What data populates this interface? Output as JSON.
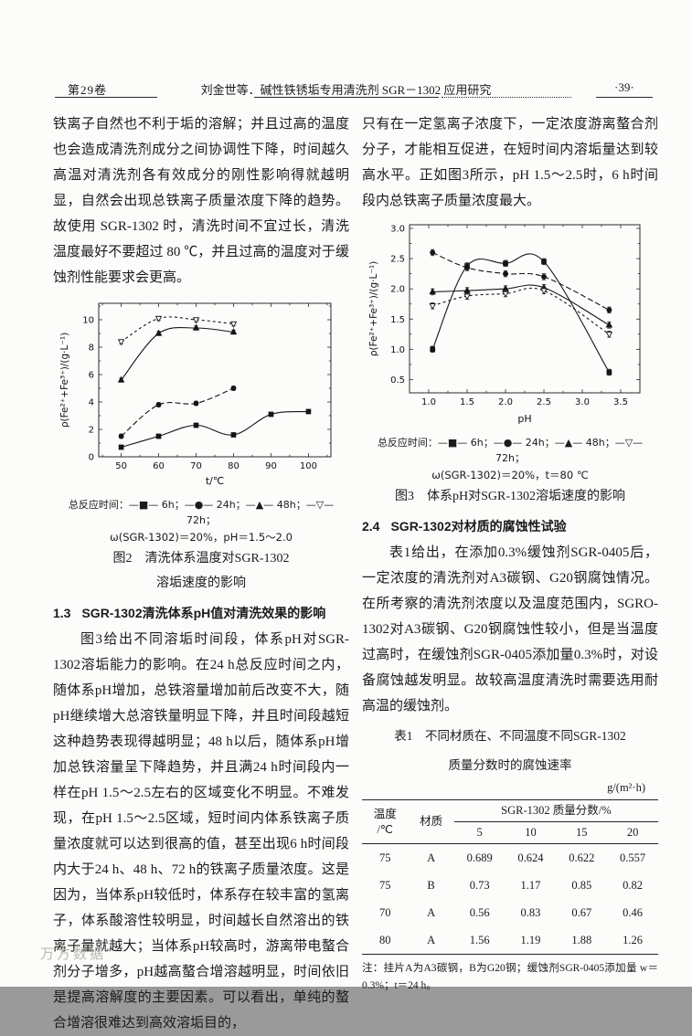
{
  "header": {
    "volume": "第29卷",
    "title": "刘金世等．碱性铁锈垢专用清洗剂 SGR－1302 应用研究",
    "page": "·39·"
  },
  "left_column": {
    "para1": "铁离子自然也不利于垢的溶解；并且过高的温度也会造成清洗剂成分之间协调性下降，时间越久高温对清洗剂各有效成分的刚性影响得就越明显，自然会出现总铁离子质量浓度下降的趋势。故使用 SGR-1302 时，清洗时间不宜过长，清洗温度最好不要超过 80 ℃，并且过高的温度对于缓蚀剂性能要求会更高。",
    "section_number": "1.3",
    "section_title": "SGR-1302清洗体系pH值对清洗效果的影响",
    "para2": "图3给出不同溶垢时间段，体系pH对SGR-1302溶垢能力的影响。在24 h总反应时间之内，随体系pH增加，总铁溶量增加前后改变不大，随pH继续增大总溶铁量明显下降，并且时间段越短这种趋势表现得越明显；48 h以后，随体系pH增加总铁溶量呈下降趋势，并且满24 h时间段内一样在pH 1.5～2.5左右的区域变化不明显。不难发现，在pH 1.5～2.5区域，短时间内体系铁离子质量浓度就可以达到很高的值，甚至出现6 h时间段内大于24 h、48 h、72 h的铁离子质量浓度。这是因为，当体系pH较低时，体系存在较丰富的氢离子，体系酸溶性较明显，时间越长自然溶出的铁离子量就越大；当体系pH较高时，游离带电螯合剂分子增多，pH越高螯合增溶越明显，时间依旧是提高溶解度的主要因素。可以看出，单纯的螯合增溶很难达到高效溶垢目的，"
  },
  "figure2": {
    "legend_line1": "总反应时间：—■— 6h；—●— 24h；—▲— 48h；—▽— 72h；",
    "legend_line2": "ω(SGR-1302)＝20%，pH＝1.5～2.0",
    "caption_line1": "图2　清洗体系温度对SGR-1302",
    "caption_line2": "溶垢速度的影响"
  },
  "figure3": {
    "legend_line1": "总反应时间：—■— 6h；—●— 24h；—▲— 48h；—▽— 72h；",
    "legend_line2": "ω(SGR-1302)＝20%，t＝80 ℃",
    "caption": "图3　体系pH对SGR-1302溶垢速度的影响"
  },
  "right_column": {
    "para1": "只有在一定氢离子浓度下，一定浓度游离螯合剂分子，才能相互促进，在短时间内溶垢量达到较高水平。正如图3所示，pH 1.5～2.5时，6 h时间段内总铁离子质量浓度最大。",
    "section_number": "2.4",
    "section_title": "SGR-1302对材质的腐蚀性试验",
    "para2": "表1给出，在添加0.3%缓蚀剂SGR-0405后，一定浓度的清洗剂对A3碳钢、G20钢腐蚀情况。在所考察的清洗剂浓度以及温度范围内，SGRO-1302对A3碳钢、G20钢腐蚀性较小，但是当温度过高时，在缓蚀剂SGR-0405添加量0.3%时，对设备腐蚀越发明显。故较高温度清洗时需要选用耐高温的缓蚀剂。"
  },
  "table1": {
    "title_line1": "表1　不同材质在、不同温度不同SGR-1302",
    "title_line2": "质量分数时的腐蚀速率",
    "unit": "g/(m²·h)",
    "header": {
      "col1_line1": "温度",
      "col1_line2": "/℃",
      "col2": "材质",
      "span": "SGR-1302 质量分数/%",
      "fractions": [
        "5",
        "10",
        "15",
        "20"
      ]
    },
    "rows": [
      [
        "75",
        "A",
        "0.689",
        "0.624",
        "0.622",
        "0.557"
      ],
      [
        "75",
        "B",
        "0.73",
        "1.17",
        "0.85",
        "0.82"
      ],
      [
        "70",
        "A",
        "0.56",
        "0.83",
        "0.67",
        "0.46"
      ],
      [
        "80",
        "A",
        "1.56",
        "1.19",
        "1.88",
        "1.26"
      ]
    ],
    "note": "注：挂片A为A3碳钢，B为G20钢；缓蚀剂SGR-0405添加量 w＝0.3%；t＝24 h。"
  },
  "footer": {
    "watermark": "万方数据"
  },
  "chart_data": [
    {
      "type": "line",
      "title": "图2 清洗体系温度对SGR-1302溶垢速度的影响",
      "xlabel": "t/℃",
      "ylabel": "ρ(Fe²⁺+Fe³⁺)/(g·L⁻¹)",
      "xlim": [
        44,
        106
      ],
      "ylim": [
        0,
        11.2
      ],
      "xticks": [
        50,
        60,
        70,
        80,
        90,
        100
      ],
      "xtick_labels": [
        "50",
        "60",
        "70",
        "80",
        "90",
        "100"
      ],
      "xminor": [
        45,
        55,
        65,
        75,
        85,
        95,
        105
      ],
      "yticks": [
        0,
        2,
        4,
        6,
        8,
        10
      ],
      "ytick_labels": [
        "0",
        "2",
        "4",
        "6",
        "8",
        "10"
      ],
      "yminor": [
        1,
        3,
        5,
        7,
        9,
        11
      ],
      "grid": false,
      "legend_position": "below",
      "legend_title": "总反应时间",
      "conditions": "ω(SGR-1302)=20%, pH=1.5~2.0",
      "size": [
        312,
        212
      ],
      "margins": [
        44,
        14,
        10,
        34
      ],
      "series": [
        {
          "name": "6h",
          "marker": "square-filled",
          "dash": "",
          "err": 0.15,
          "x": [
            50,
            60,
            70,
            80,
            90,
            100
          ],
          "y": [
            0.7,
            1.5,
            2.3,
            1.6,
            3.1,
            3.3
          ]
        },
        {
          "name": "24h",
          "marker": "circle-filled",
          "dash": "6,3",
          "err": 0.15,
          "x": [
            50,
            60,
            70,
            80
          ],
          "y": [
            1.5,
            3.8,
            3.9,
            5.0
          ]
        },
        {
          "name": "48h",
          "marker": "triangle-up-filled",
          "dash": "",
          "err": 0.15,
          "x": [
            50,
            60,
            70,
            80
          ],
          "y": [
            5.6,
            9.0,
            9.4,
            9.1
          ]
        },
        {
          "name": "72h",
          "marker": "triangle-down-open",
          "dash": "3,3",
          "err": 0.15,
          "x": [
            50,
            60,
            70,
            80
          ],
          "y": [
            8.4,
            10.1,
            10.0,
            9.7
          ]
        }
      ]
    },
    {
      "type": "line",
      "title": "图3 体系pH对SGR-1302溶垢速度的影响",
      "xlabel": "pH",
      "ylabel": "ρ(Fe²⁺+Fe³⁺)/(g·L⁻¹)",
      "xlim": [
        0.75,
        3.75
      ],
      "ylim": [
        0.28,
        3.06
      ],
      "xticks": [
        1.0,
        1.5,
        2.0,
        2.5,
        3.0,
        3.5
      ],
      "xtick_labels": [
        "1.0",
        "1.5",
        "2.0",
        "2.5",
        "3.0",
        "3.5"
      ],
      "xminor": [
        1.25,
        1.75,
        2.25,
        2.75,
        3.25
      ],
      "yticks": [
        0.5,
        1.0,
        1.5,
        2.0,
        2.5,
        3.0
      ],
      "ytick_labels": [
        "0.5",
        "1.0",
        "1.5",
        "2.0",
        "2.5",
        "3.0"
      ],
      "yminor": [
        0.75,
        1.25,
        1.75,
        2.25,
        2.75
      ],
      "grid": false,
      "legend_position": "below",
      "legend_title": "总反应时间",
      "conditions": "ω(SGR-1302)=20%, t=80 ℃",
      "size": [
        312,
        228
      ],
      "margins": [
        46,
        14,
        8,
        36
      ],
      "series": [
        {
          "name": "6h",
          "marker": "square-filled",
          "dash": "",
          "err": 0.05,
          "x": [
            1.05,
            1.5,
            2.0,
            2.5,
            3.35
          ],
          "y": [
            1.0,
            2.38,
            2.42,
            2.45,
            0.62
          ]
        },
        {
          "name": "24h",
          "marker": "circle-filled",
          "dash": "6,3",
          "err": 0.05,
          "x": [
            1.05,
            1.5,
            2.0,
            2.5,
            3.35
          ],
          "y": [
            2.6,
            2.35,
            2.25,
            2.2,
            1.65
          ]
        },
        {
          "name": "48h",
          "marker": "triangle-up-filled",
          "dash": "",
          "err": 0.05,
          "x": [
            1.05,
            1.5,
            2.0,
            2.5,
            3.35
          ],
          "y": [
            1.95,
            1.97,
            2.0,
            2.02,
            1.4
          ]
        },
        {
          "name": "72h",
          "marker": "triangle-down-open",
          "dash": "3,3",
          "err": 0.05,
          "x": [
            1.05,
            1.5,
            2.0,
            2.5,
            3.35
          ],
          "y": [
            1.72,
            1.88,
            1.92,
            1.97,
            1.25
          ]
        }
      ]
    }
  ]
}
